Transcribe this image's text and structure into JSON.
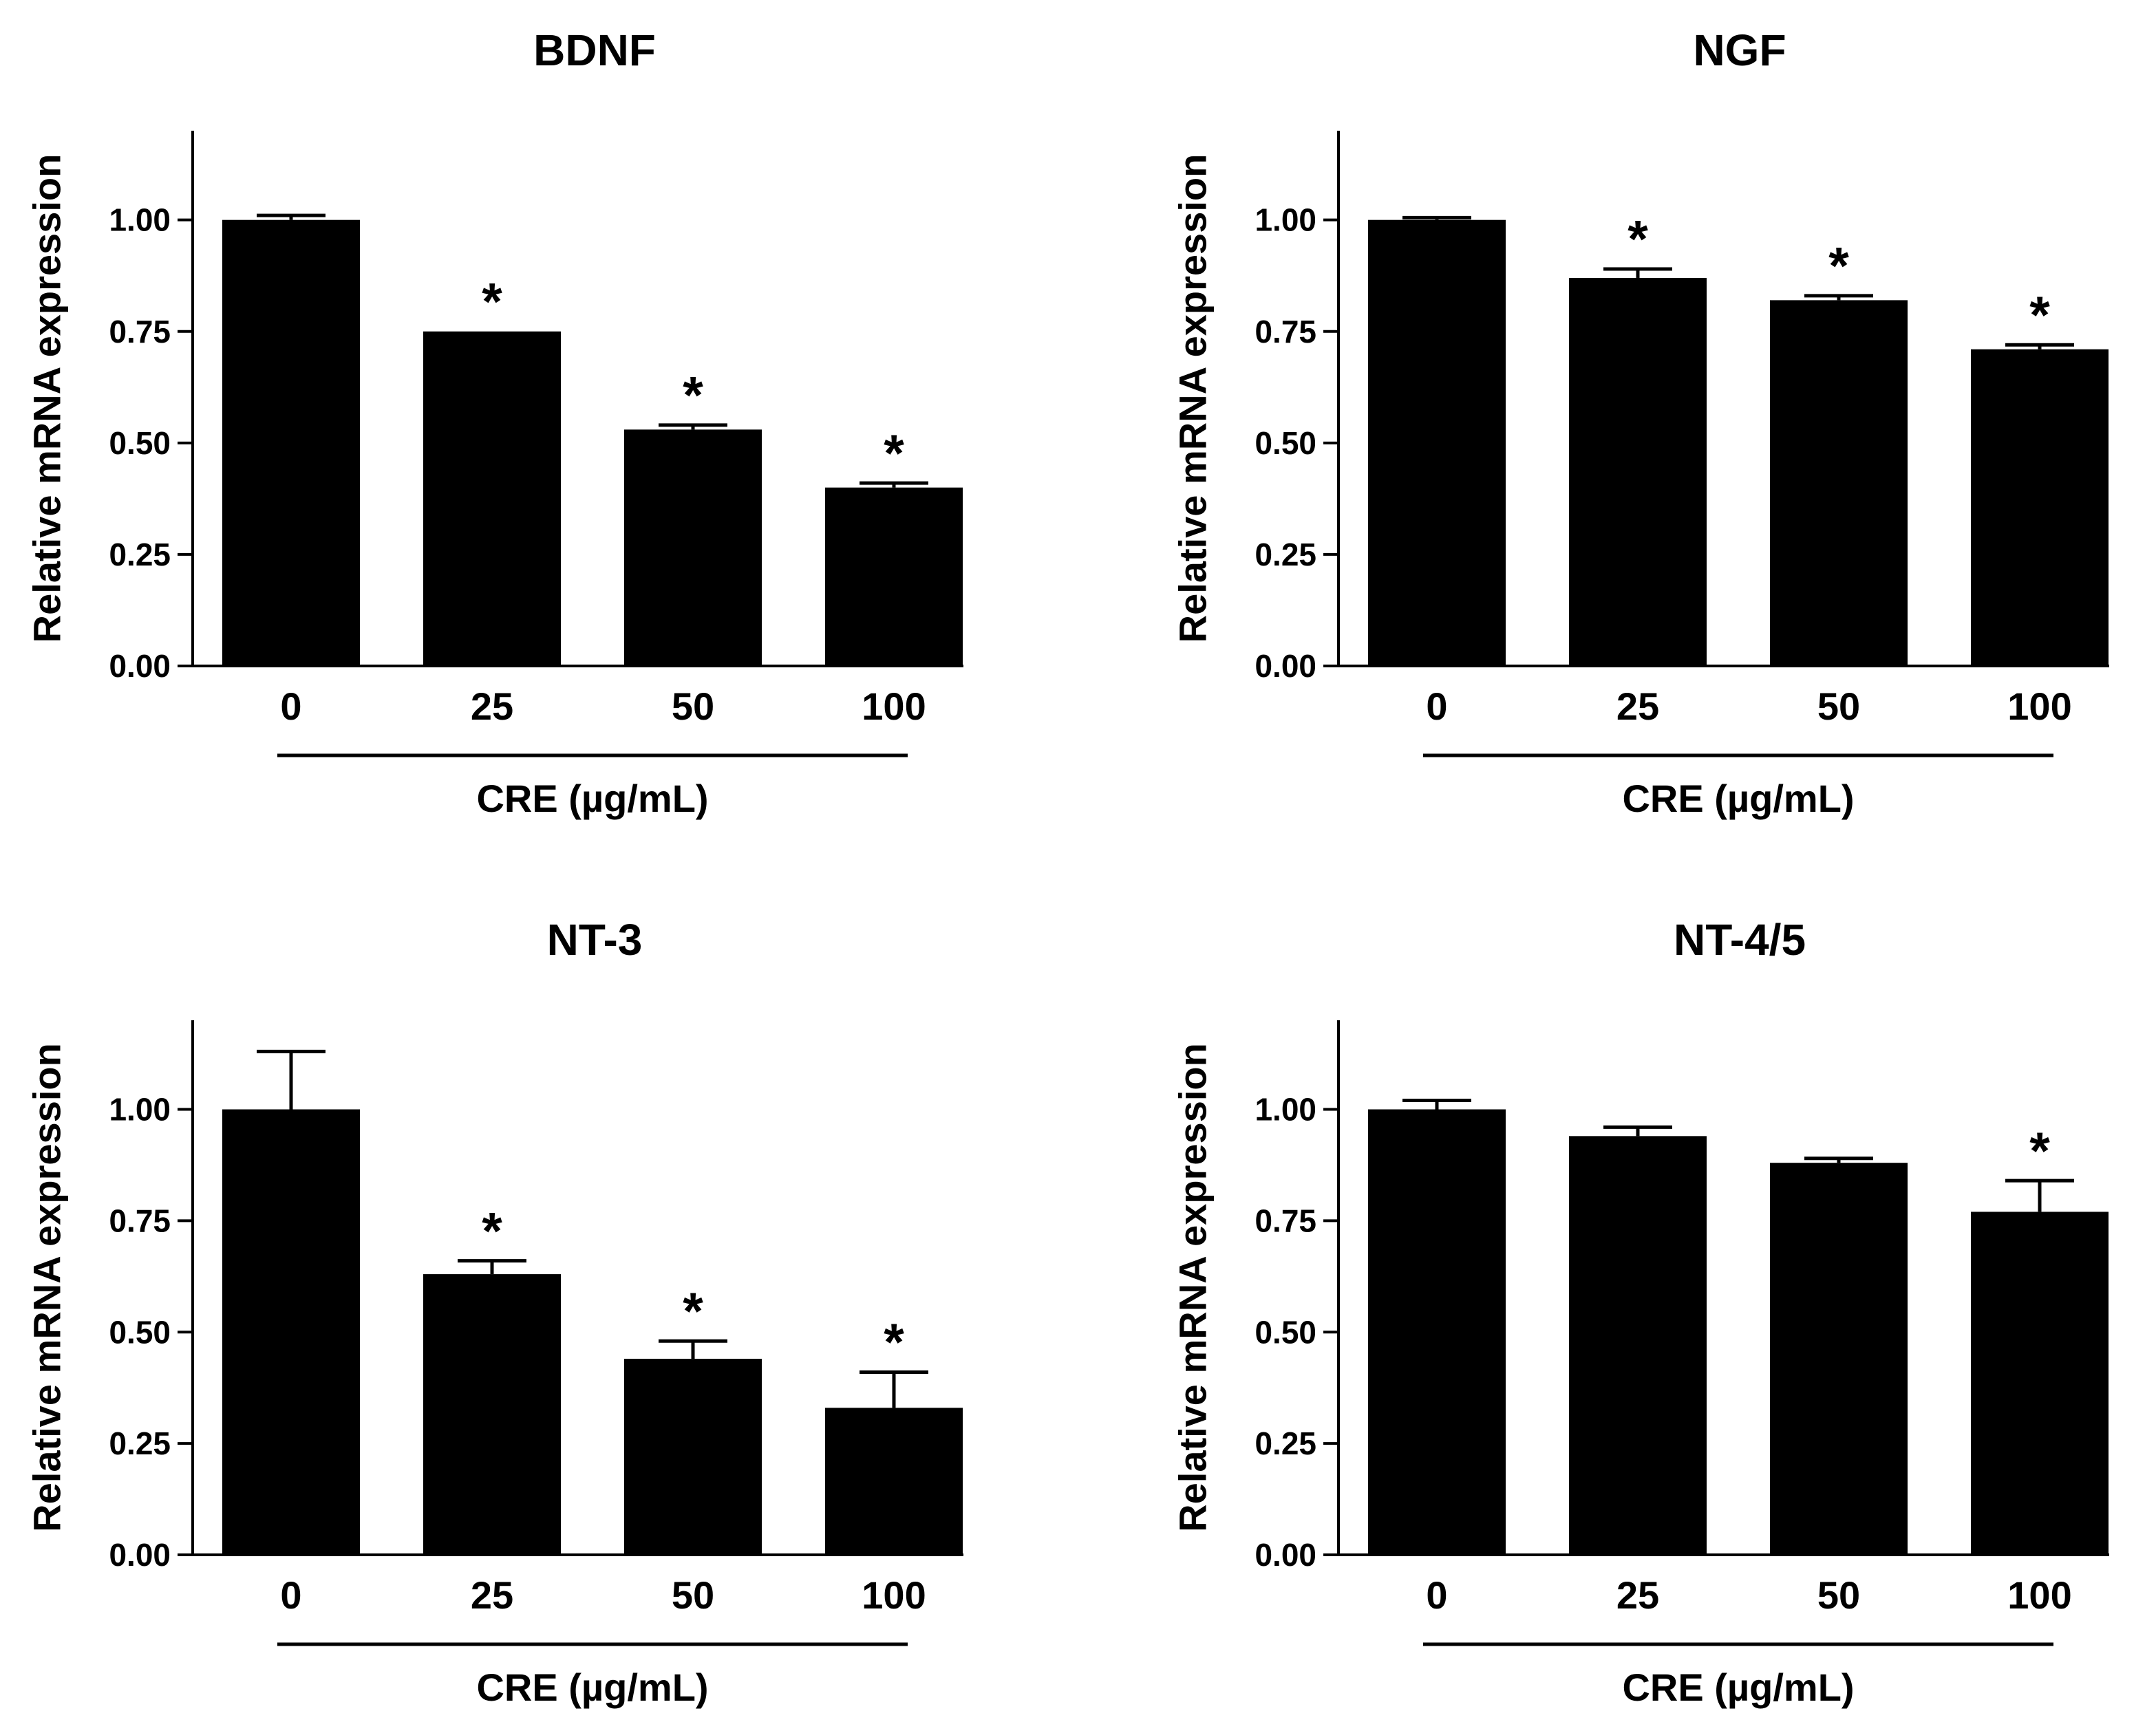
{
  "figure": {
    "background": "#ffffff",
    "bar_color": "#000000"
  },
  "chart_data": [
    {
      "type": "bar",
      "title": "BDNF",
      "ylabel": "Relative mRNA expression",
      "xlabel": "CRE (µg/mL)",
      "categories": [
        "0",
        "25",
        "50",
        "100"
      ],
      "values": [
        1.0,
        0.75,
        0.53,
        0.4
      ],
      "errors": [
        0.01,
        0.0,
        0.01,
        0.01
      ],
      "significance": [
        "",
        "*",
        "*",
        "*"
      ],
      "ylim": [
        0,
        1.2
      ],
      "yticks": [
        "0.00",
        "0.25",
        "0.50",
        "0.75",
        "1.00"
      ],
      "ytick_values": [
        0,
        0.25,
        0.5,
        0.75,
        1.0
      ]
    },
    {
      "type": "bar",
      "title": "NGF",
      "ylabel": "Relative mRNA expression",
      "xlabel": "CRE (µg/mL)",
      "categories": [
        "0",
        "25",
        "50",
        "100"
      ],
      "values": [
        1.0,
        0.87,
        0.82,
        0.71
      ],
      "errors": [
        0.005,
        0.02,
        0.01,
        0.01
      ],
      "significance": [
        "",
        "*",
        "*",
        "*"
      ],
      "ylim": [
        0,
        1.2
      ],
      "yticks": [
        "0.00",
        "0.25",
        "0.50",
        "0.75",
        "1.00"
      ],
      "ytick_values": [
        0,
        0.25,
        0.5,
        0.75,
        1.0
      ]
    },
    {
      "type": "bar",
      "title": "NT-3",
      "ylabel": "Relative mRNA expression",
      "xlabel": "CRE (µg/mL)",
      "categories": [
        "0",
        "25",
        "50",
        "100"
      ],
      "values": [
        1.0,
        0.63,
        0.44,
        0.33
      ],
      "errors": [
        0.13,
        0.03,
        0.04,
        0.08
      ],
      "significance": [
        "",
        "*",
        "*",
        "*"
      ],
      "ylim": [
        0,
        1.2
      ],
      "yticks": [
        "0.00",
        "0.25",
        "0.50",
        "0.75",
        "1.00"
      ],
      "ytick_values": [
        0,
        0.25,
        0.5,
        0.75,
        1.0
      ]
    },
    {
      "type": "bar",
      "title": "NT-4/5",
      "ylabel": "Relative mRNA expression",
      "xlabel": "CRE (µg/mL)",
      "categories": [
        "0",
        "25",
        "50",
        "100"
      ],
      "values": [
        1.0,
        0.94,
        0.88,
        0.77
      ],
      "errors": [
        0.02,
        0.02,
        0.01,
        0.07
      ],
      "significance": [
        "",
        "",
        "",
        "*"
      ],
      "ylim": [
        0,
        1.2
      ],
      "yticks": [
        "0.00",
        "0.25",
        "0.50",
        "0.75",
        "1.00"
      ],
      "ytick_values": [
        0,
        0.25,
        0.5,
        0.75,
        1.0
      ]
    }
  ]
}
